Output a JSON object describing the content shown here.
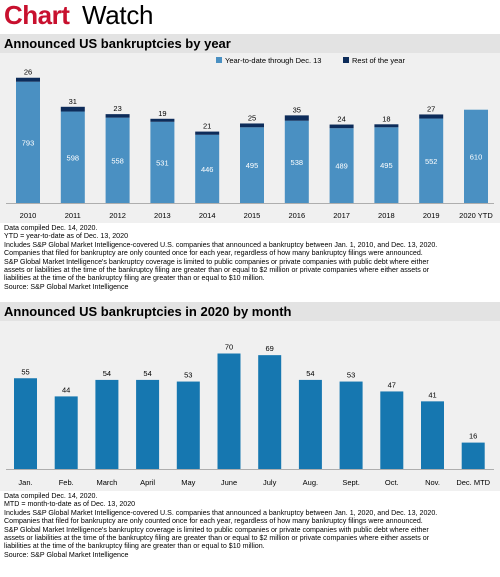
{
  "header": {
    "brand_bold": "Chart",
    "brand_regular": "Watch"
  },
  "colors": {
    "ytd": "#4a90c2",
    "rest": "#0d2c5a",
    "monthly": "#1677b0",
    "brand": "#c8102e"
  },
  "chart1": {
    "title": "Announced US bankruptcies by year",
    "legend": {
      "ytd_label": "Year-to-date through Dec. 13",
      "rest_label": "Rest of the year"
    },
    "notes": [
      "Data compiled Dec. 14, 2020.",
      "YTD = year-to-date as of Dec. 13, 2020",
      "Includes S&P Global Market Intelligence-covered U.S. companies that announced a bankruptcy between Jan. 1, 2010, and Dec. 13, 2020.",
      "Companies that filed for bankruptcy are only counted once for each year, regardless of how many bankruptcy filings were announced.",
      "S&P Global Market Intelligence's bankruptcy coverage is limited to public companies or private companies with public debt where either",
      "assets or liabilities at the time of the bankruptcy filing are greater than or equal to $2 million or private companies where either assets or",
      "liabilities at the time of the bankruptcy filing are greater than or equal to $10 million.",
      "Source: S&P Global Market Intelligence"
    ]
  },
  "chart2": {
    "title": "Announced US bankruptcies in 2020 by month",
    "notes": [
      "Data compiled Dec. 14, 2020.",
      "MTD = month-to-date as of Dec. 13, 2020",
      "Includes S&P Global Market Intelligence-covered U.S. companies that announced a bankruptcy between Jan. 1, 2020, and Dec. 13, 2020.",
      "Companies that filed for bankruptcy are only counted once for each year, regardless of how many bankruptcy filings were announced.",
      "S&P Global Market Intelligence's bankruptcy coverage is limited to public companies or private companies with public debt where either",
      "assets or liabilities at the time of the bankruptcy filing are greater than or equal to $2 million or private companies where either assets or",
      "liabilities at the time of the bankruptcy filing are greater than or equal to $10 million.",
      "Source: S&P Global Market Intelligence"
    ]
  },
  "chart_data": [
    {
      "type": "bar",
      "stacked": true,
      "title": "Announced US bankruptcies by year",
      "categories": [
        "2010",
        "2011",
        "2012",
        "2013",
        "2014",
        "2015",
        "2016",
        "2017",
        "2018",
        "2019",
        "2020 YTD"
      ],
      "series": [
        {
          "name": "Year-to-date through Dec. 13",
          "values": [
            793,
            598,
            558,
            531,
            446,
            495,
            538,
            489,
            495,
            552,
            610
          ]
        },
        {
          "name": "Rest of the year",
          "values": [
            26,
            31,
            23,
            19,
            21,
            25,
            35,
            24,
            18,
            27,
            0
          ]
        }
      ],
      "legend": "top-right",
      "grid": false,
      "ylim": [
        0,
        850
      ]
    },
    {
      "type": "bar",
      "title": "Announced US bankruptcies in 2020 by month",
      "categories": [
        "Jan.",
        "Feb.",
        "March",
        "April",
        "May",
        "June",
        "July",
        "Aug.",
        "Sept.",
        "Oct.",
        "Nov.",
        "Dec. MTD"
      ],
      "values": [
        55,
        44,
        54,
        54,
        53,
        70,
        69,
        54,
        53,
        47,
        41,
        16
      ],
      "grid": false,
      "ylim": [
        0,
        80
      ]
    }
  ]
}
